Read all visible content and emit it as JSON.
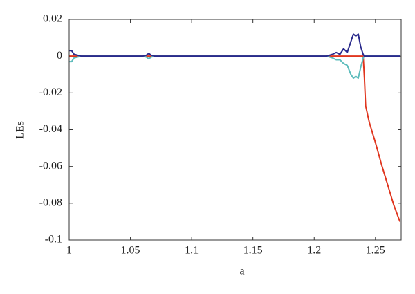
{
  "chart_data": {
    "type": "line",
    "xlabel": "a",
    "ylabel": "LEs",
    "x": [
      1,
      1.002,
      1.004,
      1.01,
      1.02,
      1.03,
      1.04,
      1.05,
      1.06,
      1.063,
      1.065,
      1.067,
      1.07,
      1.08,
      1.09,
      1.1,
      1.11,
      1.12,
      1.13,
      1.14,
      1.15,
      1.16,
      1.17,
      1.18,
      1.19,
      1.2,
      1.21,
      1.215,
      1.218,
      1.221,
      1.224,
      1.227,
      1.23,
      1.232,
      1.234,
      1.236,
      1.238,
      1.24,
      1.241,
      1.242,
      1.245,
      1.25,
      1.255,
      1.26,
      1.265,
      1.27
    ],
    "series": [
      {
        "color": "#e0361f",
        "values": [
          0,
          0,
          0,
          0,
          0,
          0,
          0,
          0,
          0,
          0,
          0,
          0,
          0,
          0,
          0,
          0,
          0,
          0,
          0,
          0,
          0,
          0,
          0,
          0,
          0,
          0,
          0,
          0,
          0,
          0,
          0,
          0,
          0,
          0,
          0,
          0,
          0,
          0,
          -0.012,
          -0.027,
          -0.036,
          -0.047,
          -0.059,
          -0.07,
          -0.081,
          -0.09
        ]
      },
      {
        "color": "#5cbcbc",
        "values": [
          -0.003,
          -0.003,
          -0.001,
          0,
          0,
          0,
          0,
          0,
          0,
          -0.0005,
          -0.0015,
          -0.0005,
          0,
          0,
          0,
          0,
          0,
          0,
          0,
          0,
          0,
          0,
          0,
          0,
          0,
          0,
          0,
          -0.001,
          -0.002,
          -0.002,
          -0.004,
          -0.005,
          -0.01,
          -0.012,
          -0.011,
          -0.012,
          -0.006,
          -0.001,
          0,
          0,
          0,
          0,
          0,
          0,
          0,
          0
        ]
      },
      {
        "color": "#2a2a8c",
        "values": [
          0.003,
          0.003,
          0.001,
          0,
          0,
          0,
          0,
          0,
          0,
          0.0005,
          0.0015,
          0.0005,
          0,
          0,
          0,
          0,
          0,
          0,
          0,
          0,
          0,
          0,
          0,
          0,
          0,
          0,
          0,
          0.001,
          0.002,
          0.001,
          0.004,
          0.002,
          0.008,
          0.012,
          0.011,
          0.012,
          0.005,
          0.001,
          0,
          0,
          0,
          0,
          0,
          0,
          0,
          0
        ]
      }
    ],
    "xlim": [
      1,
      1.271
    ],
    "xticks": [
      1,
      1.05,
      1.1,
      1.15,
      1.2,
      1.25
    ],
    "ylim": [
      -0.1,
      0.02
    ],
    "yticks": [
      0.02,
      0,
      -0.02,
      -0.04,
      -0.06,
      -0.08,
      -0.1
    ]
  }
}
